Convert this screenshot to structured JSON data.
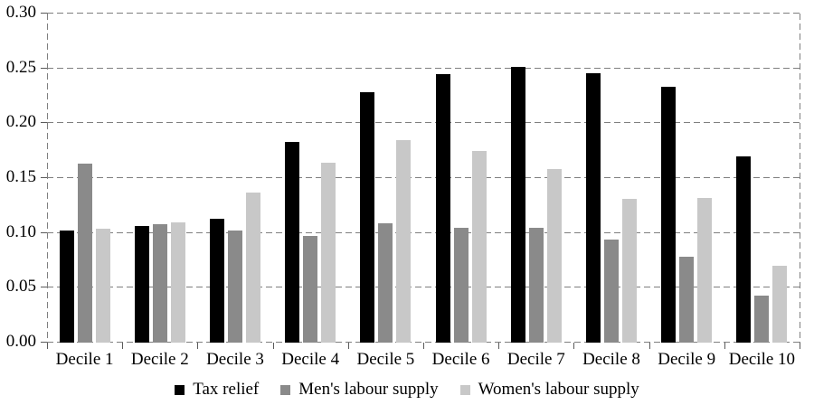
{
  "chart_data": {
    "type": "bar",
    "title": "",
    "xlabel": "",
    "ylabel": "",
    "categories": [
      "Decile 1",
      "Decile 2",
      "Decile 3",
      "Decile 4",
      "Decile 5",
      "Decile 6",
      "Decile 7",
      "Decile 8",
      "Decile 9",
      "Decile 10"
    ],
    "series": [
      {
        "name": "Tax relief",
        "color": "#000000",
        "values": [
          0.102,
          0.106,
          0.113,
          0.183,
          0.228,
          0.245,
          0.251,
          0.246,
          0.233,
          0.17
        ]
      },
      {
        "name": "Men's labour supply",
        "color": "#8a8a8a",
        "values": [
          0.163,
          0.108,
          0.102,
          0.097,
          0.109,
          0.105,
          0.105,
          0.094,
          0.078,
          0.043
        ]
      },
      {
        "name": "Women's labour supply",
        "color": "#c8c8c8",
        "values": [
          0.104,
          0.11,
          0.137,
          0.164,
          0.185,
          0.175,
          0.158,
          0.131,
          0.132,
          0.07
        ]
      }
    ],
    "ylim": [
      0,
      0.3
    ],
    "ytick_labels": [
      "0.00",
      "0.05",
      "0.10",
      "0.15",
      "0.20",
      "0.25",
      "0.30"
    ],
    "ytick_values": [
      0,
      0.05,
      0.1,
      0.15,
      0.2,
      0.25,
      0.3
    ],
    "grid": "dashed horizontal gridlines with dashed left/right/top/bottom plot border",
    "legend_position": "bottom-center",
    "colors": {
      "background": "#ffffff",
      "gridline": "#7f7f7f",
      "tick": "#5a5a5a",
      "text": "#000000"
    }
  }
}
